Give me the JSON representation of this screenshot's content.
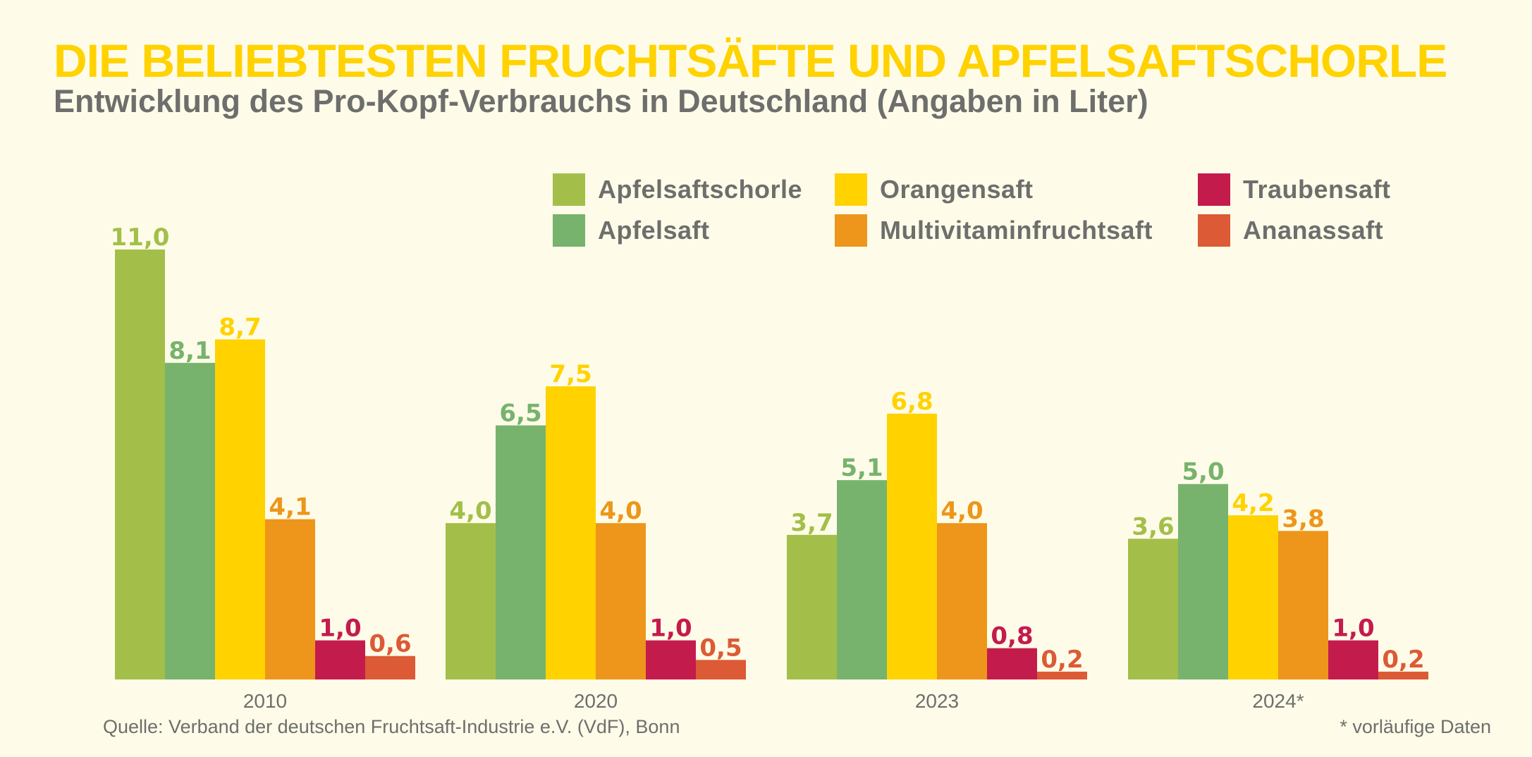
{
  "chart_data": {
    "type": "bar",
    "title": "DIE BELIEBTESTEN FRUCHTSÄFTE UND APFELSAFTSCHORLE",
    "subtitle": "Entwicklung des Pro-Kopf-Verbrauchs in Deutschland (Angaben in Liter)",
    "xlabel": "",
    "ylabel": "",
    "ylim": [
      0,
      11
    ],
    "grid": false,
    "legend_position": "top-right",
    "categories": [
      "2010",
      "2020",
      "2023",
      "2024*"
    ],
    "series": [
      {
        "name": "Apfelsaftschorle",
        "color": "#a3bf4a",
        "values": [
          11.0,
          4.0,
          3.7,
          3.6
        ],
        "labels": [
          "11,0",
          "4,0",
          "3,7",
          "3,6"
        ]
      },
      {
        "name": "Apfelsaft",
        "color": "#77b36c",
        "values": [
          8.1,
          6.5,
          5.1,
          5.0
        ],
        "labels": [
          "8,1",
          "6,5",
          "5,1",
          "5,0"
        ]
      },
      {
        "name": "Orangensaft",
        "color": "#ffd200",
        "values": [
          8.7,
          7.5,
          6.8,
          4.2
        ],
        "labels": [
          "8,7",
          "7,5",
          "6,8",
          "4,2"
        ]
      },
      {
        "name": "Multivitaminfruchtsaft",
        "color": "#ed961b",
        "values": [
          4.1,
          4.0,
          4.0,
          3.8
        ],
        "labels": [
          "4,1",
          "4,0",
          "4,0",
          "3,8"
        ]
      },
      {
        "name": "Traubensaft",
        "color": "#c41b4d",
        "values": [
          1.0,
          1.0,
          0.8,
          1.0
        ],
        "labels": [
          "1,0",
          "1,0",
          "0,8",
          "1,0"
        ]
      },
      {
        "name": "Ananassaft",
        "color": "#dc5a35",
        "values": [
          0.6,
          0.5,
          0.2,
          0.2
        ],
        "labels": [
          "0,6",
          "0,5",
          "0,2",
          "0,2"
        ]
      }
    ],
    "source": "Quelle: Verband der deutschen Fruchtsaft-Industrie e.V. (VdF), Bonn",
    "footnote": "* vorläufige Daten"
  },
  "legend_layout": [
    [
      "Apfelsaftschorle",
      "Orangensaft",
      "Traubensaft"
    ],
    [
      "Apfelsaft",
      "Multivitaminfruchtsaft",
      "Ananassaft"
    ]
  ],
  "colors": {
    "background": "#fefce9",
    "title": "#ffd200",
    "text": "#6e6e6c"
  }
}
